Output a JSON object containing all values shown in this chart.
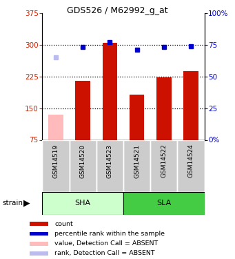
{
  "title": "GDS526 / M62992_g_at",
  "samples": [
    "GSM14519",
    "GSM14520",
    "GSM14523",
    "GSM14521",
    "GSM14522",
    "GSM14524"
  ],
  "bar_values": [
    null,
    215,
    305,
    182,
    222,
    238
  ],
  "bar_absent": [
    135,
    null,
    null,
    null,
    null,
    null
  ],
  "rank_values": [
    null,
    73,
    77,
    71,
    73,
    74
  ],
  "rank_absent": [
    65,
    null,
    null,
    null,
    null,
    null
  ],
  "ylim_left": [
    75,
    375
  ],
  "yticks_left": [
    75,
    150,
    225,
    300,
    375
  ],
  "ylim_right": [
    0,
    100
  ],
  "yticks_right": [
    0,
    25,
    50,
    75,
    100
  ],
  "hlines": [
    150,
    225,
    300
  ],
  "bar_color": "#cc1100",
  "bar_absent_color": "#ffbbbb",
  "rank_color": "#0000cc",
  "rank_absent_color": "#bbbbee",
  "left_tick_color": "#cc2200",
  "right_tick_color": "#0000cc",
  "bar_width": 0.55,
  "sha_color": "#ccffcc",
  "sla_color": "#44cc44",
  "sample_box_color": "#cccccc",
  "legend_items": [
    [
      "#cc1100",
      "count"
    ],
    [
      "#0000cc",
      "percentile rank within the sample"
    ],
    [
      "#ffbbbb",
      "value, Detection Call = ABSENT"
    ],
    [
      "#bbbbee",
      "rank, Detection Call = ABSENT"
    ]
  ]
}
